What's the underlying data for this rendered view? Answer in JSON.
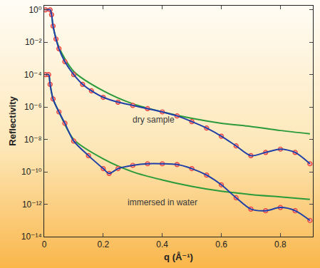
{
  "chart_data": {
    "type": "scatter",
    "x_label": "q (Å⁻¹)",
    "y_label": "Reflectivity",
    "log": "y",
    "grid": false,
    "xlim": [
      0,
      0.91
    ],
    "ylim": [
      1e-14,
      1.8
    ],
    "xticks": [
      0,
      0.2,
      0.4,
      0.6,
      0.8
    ],
    "yticks": [
      {
        "value": 1,
        "label": "10⁰"
      },
      {
        "value": 0.01,
        "label": "10⁻²"
      },
      {
        "value": 0.0001,
        "label": "10⁻⁴"
      },
      {
        "value": 1e-06,
        "label": "10⁻⁶"
      },
      {
        "value": 1e-08,
        "label": "10⁻⁸"
      },
      {
        "value": 1e-10,
        "label": "10⁻¹⁰"
      },
      {
        "value": 1e-12,
        "label": "10⁻¹²"
      },
      {
        "value": 1e-14,
        "label": "10⁻¹⁴"
      }
    ],
    "annotations": [
      {
        "text": "dry sample",
        "x": 0.37,
        "y": 1.6e-07
      },
      {
        "text": "immersed in water",
        "x": 0.4,
        "y": 1.26e-12
      }
    ],
    "series": [
      {
        "color": "#2a9a3a",
        "line_style": "solid",
        "x": [
          0.005,
          0.02,
          0.025,
          0.03,
          0.05,
          0.1,
          0.2,
          0.3,
          0.4,
          0.5,
          0.6,
          0.7,
          0.8,
          0.9
        ],
        "values": [
          1,
          1,
          0.501,
          0.1,
          0.00501,
          0.000158,
          1e-05,
          1.58e-06,
          5.01e-07,
          2e-07,
          1e-07,
          6.31e-08,
          3.55e-08,
          2.24e-08
        ]
      },
      {
        "color": "#2a9a3a",
        "line_style": "solid",
        "x": [
          0.005,
          0.015,
          0.02,
          0.03,
          0.05,
          0.1,
          0.2,
          0.3,
          0.4,
          0.5,
          0.6,
          0.7,
          0.8,
          0.9
        ],
        "values": [
          0.0001,
          0.0001,
          2.51e-05,
          3.16e-06,
          5.01e-07,
          1e-08,
          6.31e-10,
          1e-10,
          3.16e-11,
          1.26e-11,
          6.31e-12,
          3.98e-12,
          2.82e-12,
          2e-12
        ]
      },
      {
        "color": "#e8403a",
        "marker": "circle",
        "x": [
          0.005,
          0.02,
          0.025,
          0.03,
          0.04,
          0.05,
          0.07,
          0.1,
          0.13,
          0.16,
          0.2,
          0.25,
          0.3,
          0.35,
          0.4,
          0.45,
          0.5,
          0.55,
          0.6,
          0.65,
          0.7,
          0.75,
          0.8,
          0.85,
          0.9
        ],
        "values": [
          1,
          1,
          0.501,
          0.1,
          0.0158,
          0.00398,
          0.000631,
          0.0001,
          2.51e-05,
          1e-05,
          3.98e-06,
          2e-06,
          1.26e-06,
          7.94e-07,
          5.01e-07,
          2.82e-07,
          1.26e-07,
          5.01e-08,
          1.58e-08,
          3.98e-09,
          1e-09,
          1.58e-09,
          2.51e-09,
          1.58e-09,
          3.16e-10
        ]
      },
      {
        "color": "#1f3fa8",
        "line_style": "solid",
        "x": [
          0.005,
          0.02,
          0.025,
          0.03,
          0.04,
          0.05,
          0.07,
          0.1,
          0.13,
          0.16,
          0.2,
          0.25,
          0.3,
          0.35,
          0.4,
          0.45,
          0.5,
          0.55,
          0.6,
          0.65,
          0.7,
          0.75,
          0.8,
          0.85,
          0.9
        ],
        "values": [
          1,
          1,
          0.501,
          0.1,
          0.0158,
          0.00398,
          0.000631,
          0.0001,
          2.51e-05,
          1e-05,
          3.98e-06,
          2e-06,
          1.26e-06,
          7.94e-07,
          5.01e-07,
          2.82e-07,
          1.26e-07,
          5.01e-08,
          1.58e-08,
          3.98e-09,
          1e-09,
          1.58e-09,
          2.51e-09,
          1.58e-09,
          3.16e-10
        ]
      },
      {
        "color": "#e8403a",
        "marker": "circle",
        "x": [
          0.005,
          0.015,
          0.02,
          0.03,
          0.05,
          0.07,
          0.1,
          0.15,
          0.2,
          0.22,
          0.25,
          0.3,
          0.35,
          0.4,
          0.45,
          0.5,
          0.55,
          0.6,
          0.65,
          0.7,
          0.75,
          0.8,
          0.85,
          0.9
        ],
        "values": [
          0.0001,
          0.0001,
          2.51e-05,
          3.16e-06,
          5.01e-07,
          1e-07,
          7.94e-09,
          1e-09,
          1.58e-10,
          7.94e-11,
          1.58e-10,
          2.51e-10,
          3.16e-10,
          3.16e-10,
          2.82e-10,
          1.58e-10,
          6.31e-11,
          1.58e-11,
          2.51e-12,
          5.01e-13,
          3.98e-13,
          6.31e-13,
          3.98e-13,
          1e-13
        ]
      },
      {
        "color": "#1f3fa8",
        "line_style": "solid",
        "x": [
          0.005,
          0.015,
          0.02,
          0.03,
          0.05,
          0.07,
          0.1,
          0.15,
          0.2,
          0.22,
          0.25,
          0.3,
          0.35,
          0.4,
          0.45,
          0.5,
          0.55,
          0.6,
          0.65,
          0.7,
          0.75,
          0.8,
          0.85,
          0.9
        ],
        "values": [
          0.0001,
          0.0001,
          2.51e-05,
          3.16e-06,
          5.01e-07,
          1e-07,
          7.94e-09,
          1e-09,
          1.58e-10,
          7.94e-11,
          1.58e-10,
          2.51e-10,
          3.16e-10,
          3.16e-10,
          2.82e-10,
          1.58e-10,
          6.31e-11,
          1.58e-11,
          2.51e-12,
          5.01e-13,
          3.98e-13,
          6.31e-13,
          3.98e-13,
          1e-13
        ]
      }
    ]
  }
}
